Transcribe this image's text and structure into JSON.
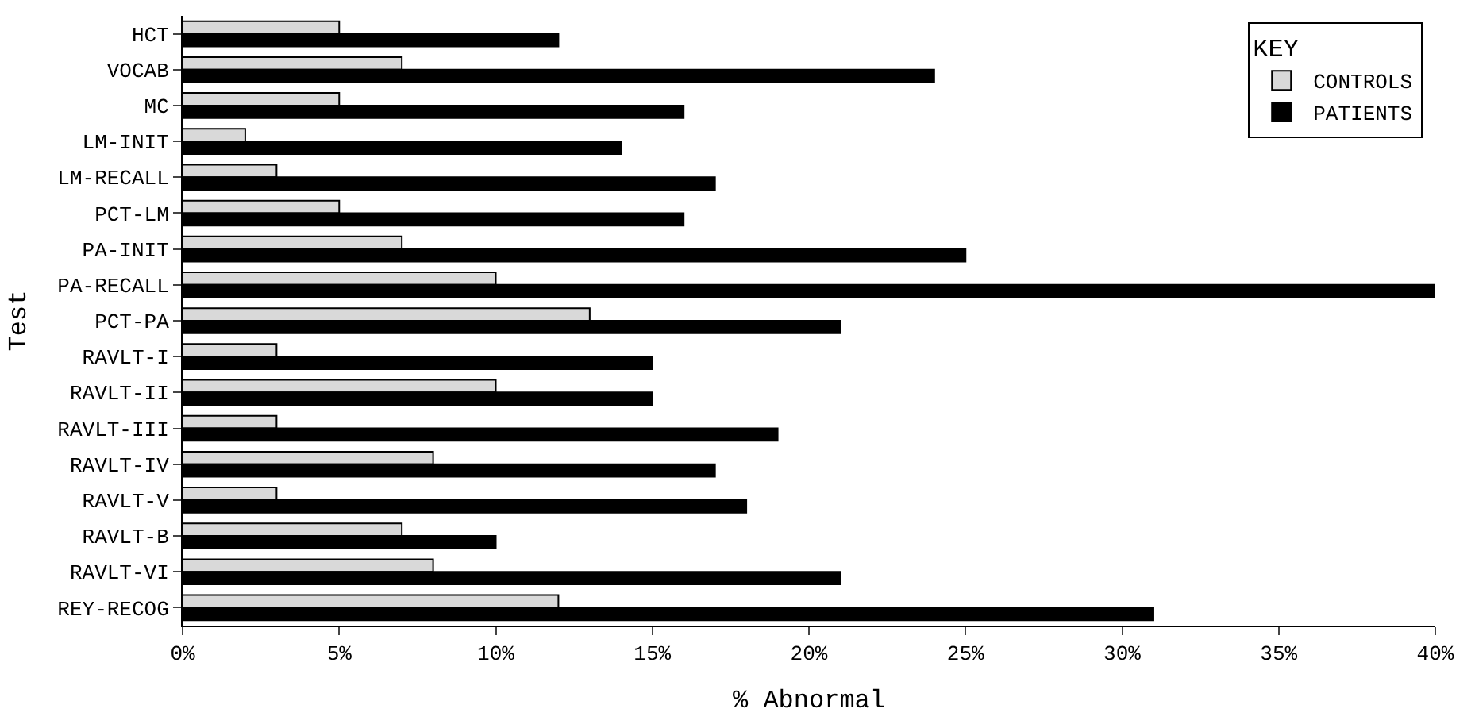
{
  "chart_data": {
    "type": "bar",
    "orientation": "horizontal",
    "xlabel": "% Abnormal",
    "ylabel": "Test",
    "legend_title": "KEY",
    "legend": "top right",
    "categories": [
      "HCT",
      "VOCAB",
      "MC",
      "LM-INIT",
      "LM-RECALL",
      "PCT-LM",
      "PA-INIT",
      "PA-RECALL",
      "PCT-PA",
      "RAVLT-I",
      "RAVLT-II",
      "RAVLT-III",
      "RAVLT-IV",
      "RAVLT-V",
      "RAVLT-B",
      "RAVLT-VI",
      "REY-RECOG"
    ],
    "series": [
      {
        "name": "CONTROLS",
        "color": "#d9d9d9",
        "values": [
          5,
          7,
          5,
          2,
          3,
          5,
          7,
          10,
          13,
          3,
          10,
          3,
          8,
          3,
          7,
          8,
          12
        ]
      },
      {
        "name": "PATIENTS",
        "color": "#000000",
        "values": [
          12,
          24,
          16,
          14,
          17,
          16,
          25,
          40,
          21,
          15,
          15,
          19,
          17,
          18,
          10,
          21,
          31
        ]
      }
    ],
    "xlim": [
      0,
      40
    ],
    "xticks": [
      {
        "value": 0,
        "label": "0%"
      },
      {
        "value": 5,
        "label": "5%"
      },
      {
        "value": 10,
        "label": "10%"
      },
      {
        "value": 15,
        "label": "15%"
      },
      {
        "value": 20,
        "label": "20%"
      },
      {
        "value": 25,
        "label": "25%"
      },
      {
        "value": 30,
        "label": "30%"
      },
      {
        "value": 35,
        "label": "35%"
      },
      {
        "value": 40,
        "label": "40%"
      }
    ]
  }
}
